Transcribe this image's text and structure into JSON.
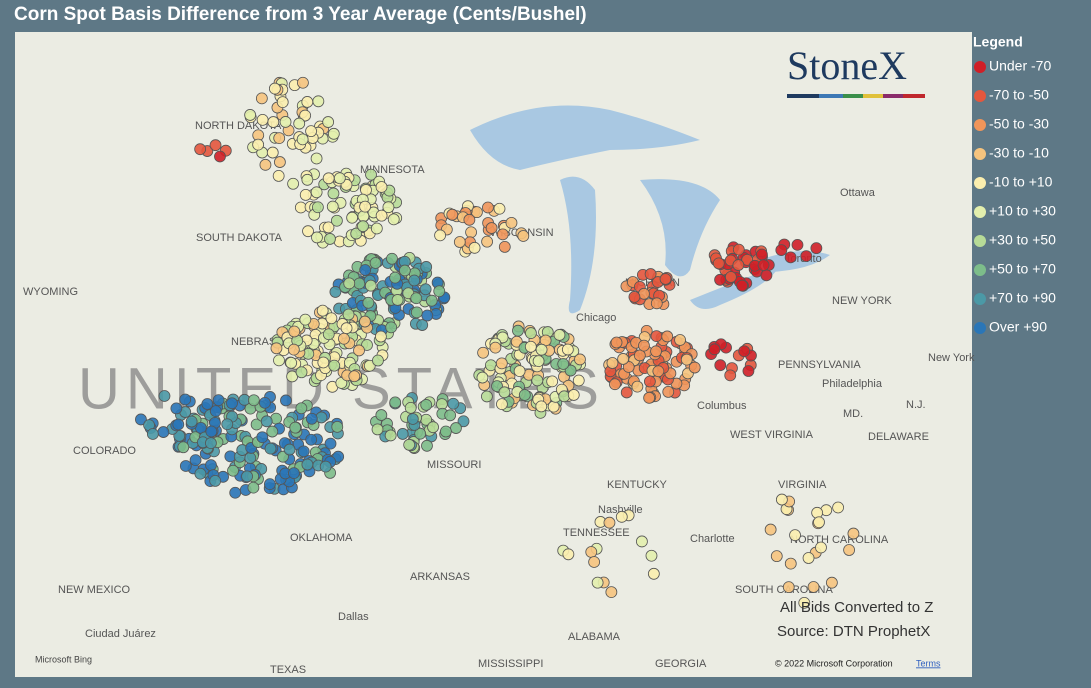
{
  "header": {
    "title": "Corn Spot Basis Difference from 3 Year Average (Cents/Bushel)"
  },
  "legend": {
    "title": "Legend",
    "items": [
      {
        "label": "Under -70",
        "color": "#d01f27"
      },
      {
        "label": "-70 to -50",
        "color": "#e4573d"
      },
      {
        "label": "-50 to -30",
        "color": "#f0955a"
      },
      {
        "label": "-30 to -10",
        "color": "#f6c47e"
      },
      {
        "label": "-10 to +10",
        "color": "#fbeeae"
      },
      {
        "label": "+10 to +30",
        "color": "#e3efad"
      },
      {
        "label": "+30 to +50",
        "color": "#b7db97"
      },
      {
        "label": "+50 to +70",
        "color": "#7dbd8a"
      },
      {
        "label": "+70 to +90",
        "color": "#4b99a6"
      },
      {
        "label": "Over +90",
        "color": "#2a76b7"
      }
    ]
  },
  "logo": "StoneX",
  "map": {
    "labels": [
      "NORTH DAKOTA",
      "MINNESOTA",
      "SOUTH DAKOTA",
      "WISCONSIN",
      "WYOMING",
      "NEBRASKA",
      "UNITED STATES",
      "COLORADO",
      "MISSOURI",
      "KENTUCKY",
      "TENNESSEE",
      "OKLAHOMA",
      "ARKANSAS",
      "NEW MEXICO",
      "TEXAS",
      "MISSISSIPPI",
      "ALABAMA",
      "GEORGIA",
      "SOUTH CAROLINA",
      "NORTH CAROLINA",
      "VIRGINIA",
      "WEST VIRGINIA",
      "PENNSYLVANIA",
      "NEW YORK",
      "DELAWARE",
      "MD.",
      "N.J.",
      "Ottawa",
      "Toronto",
      "Chicago",
      "Columbus",
      "Nashville",
      "Charlotte",
      "Philadelphia",
      "New York",
      "Dallas",
      "Ciudad Juárez",
      "MICHIGAN"
    ]
  },
  "notes": [
    "All Bids Converted to Z",
    "Source: DTN ProphetX"
  ],
  "attribution": {
    "bing": "Microsoft Bing",
    "copyright": "© 2022 Microsoft Corporation",
    "terms": "Terms"
  }
}
